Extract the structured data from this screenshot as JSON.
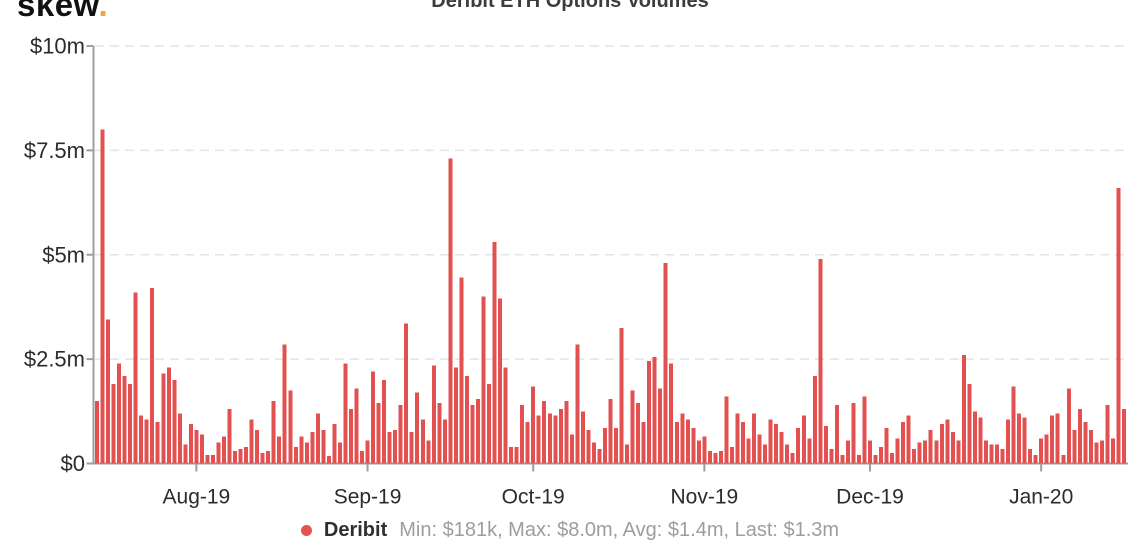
{
  "logo": {
    "text": "skew",
    "dot": ".",
    "dot_color": "#f0a43c"
  },
  "legend": {
    "series": "Deribit",
    "stats_text": "Min: $181k, Max: $8.0m, Avg: $1.4m, Last: $1.3m",
    "dot_color": "#e8524e"
  },
  "chart_data": {
    "type": "bar",
    "title": "Deribit ETH Options Volumes",
    "series_name": "Deribit",
    "unit": "million USD per day",
    "x_start_date": "2019-07-14",
    "x_frequency": "daily",
    "x_tick_labels": [
      "Aug-19",
      "Sep-19",
      "Oct-19",
      "Nov-19",
      "Dec-19",
      "Jan-20"
    ],
    "x_tick_indices": [
      18,
      49,
      79,
      110,
      140,
      171
    ],
    "y_tick_labels": [
      "$0",
      "$2.5m",
      "$5m",
      "$7.5m",
      "$10m"
    ],
    "y_tick_values": [
      0,
      2.5,
      5,
      7.5,
      10
    ],
    "ylim": [
      0,
      10
    ],
    "grid": "dashed horizontal gridlines",
    "legend_position": "bottom",
    "bar_color": "#e25150",
    "stats": {
      "min": "$181k",
      "max": "$8.0m",
      "avg": "$1.4m",
      "last": "$1.3m"
    },
    "values_musd": [
      1.5,
      8.0,
      3.45,
      1.9,
      2.4,
      2.1,
      1.9,
      4.1,
      1.15,
      1.05,
      4.2,
      1.0,
      2.15,
      2.3,
      2.0,
      1.2,
      0.45,
      0.95,
      0.8,
      0.7,
      0.2,
      0.2,
      0.5,
      0.65,
      1.3,
      0.3,
      0.35,
      0.4,
      1.05,
      0.8,
      0.25,
      0.3,
      1.5,
      0.65,
      2.85,
      1.75,
      0.4,
      0.65,
      0.5,
      0.75,
      1.2,
      0.8,
      0.18,
      0.95,
      0.5,
      2.4,
      1.3,
      1.8,
      0.3,
      0.55,
      2.2,
      1.45,
      2.0,
      0.75,
      0.8,
      1.4,
      3.35,
      0.75,
      1.7,
      1.05,
      0.55,
      2.35,
      1.45,
      1.05,
      7.3,
      2.3,
      4.45,
      2.1,
      1.4,
      1.55,
      4.0,
      1.9,
      5.3,
      3.95,
      2.3,
      0.4,
      0.4,
      1.4,
      1.0,
      1.85,
      1.15,
      1.5,
      1.2,
      1.15,
      1.3,
      1.5,
      0.7,
      2.85,
      1.25,
      0.8,
      0.5,
      0.35,
      0.85,
      1.55,
      0.85,
      3.25,
      0.45,
      1.75,
      1.45,
      1.0,
      2.45,
      2.55,
      1.8,
      4.8,
      2.4,
      1.0,
      1.2,
      1.05,
      0.85,
      0.55,
      0.65,
      0.3,
      0.25,
      0.3,
      1.6,
      0.4,
      1.2,
      1.0,
      0.6,
      1.2,
      0.7,
      0.45,
      1.05,
      0.95,
      0.75,
      0.45,
      0.25,
      0.85,
      1.15,
      0.6,
      2.1,
      4.9,
      0.9,
      0.35,
      1.4,
      0.2,
      0.55,
      1.45,
      0.2,
      1.6,
      0.55,
      0.2,
      0.4,
      0.85,
      0.25,
      0.6,
      1.0,
      1.15,
      0.35,
      0.5,
      0.55,
      0.8,
      0.55,
      0.95,
      1.05,
      0.75,
      0.55,
      2.6,
      1.9,
      1.25,
      1.1,
      0.55,
      0.45,
      0.45,
      0.35,
      1.05,
      1.85,
      1.2,
      1.1,
      0.35,
      0.2,
      0.6,
      0.7,
      1.15,
      1.2,
      0.2,
      1.8,
      0.8,
      1.3,
      1.0,
      0.8,
      0.5,
      0.55,
      1.4,
      0.6,
      6.6,
      1.3
    ]
  }
}
